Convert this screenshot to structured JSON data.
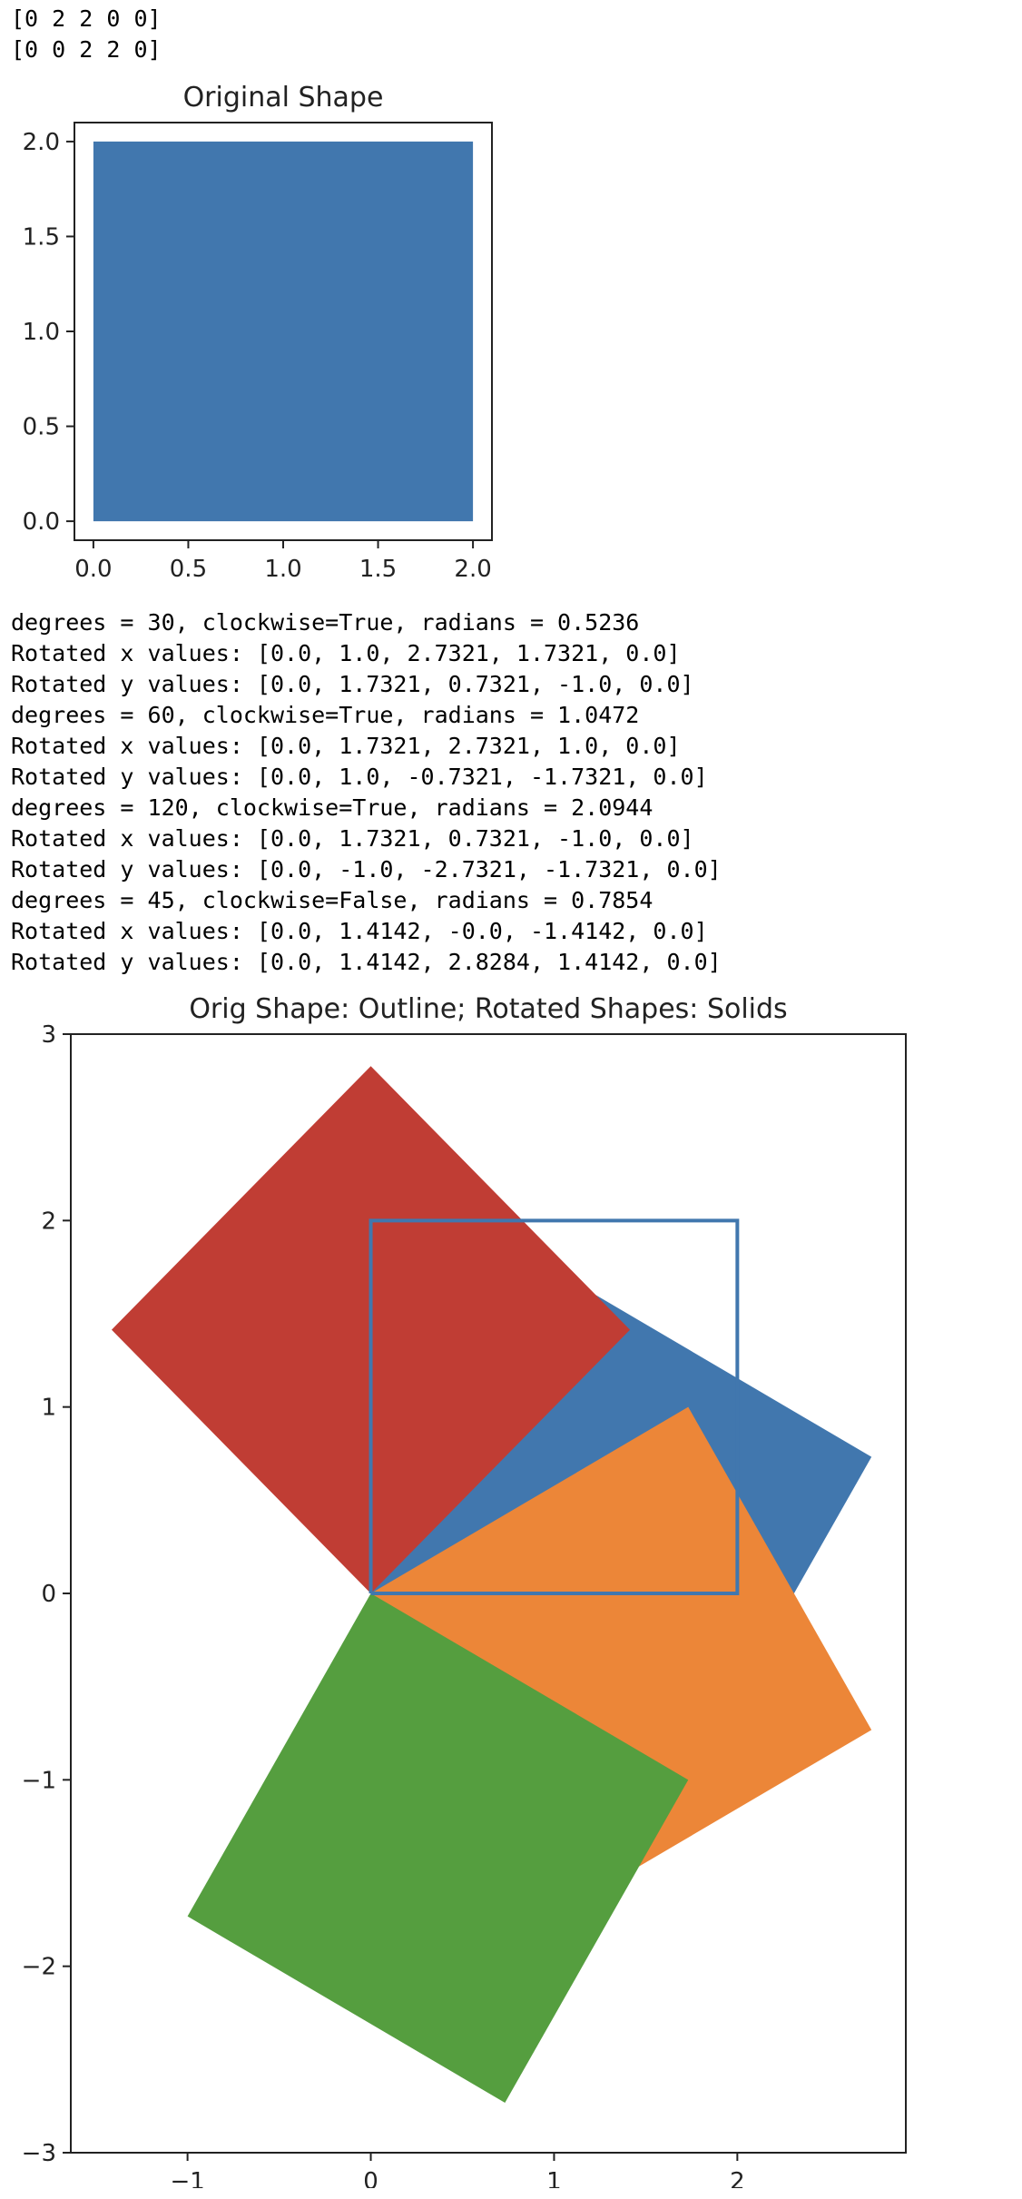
{
  "top_output": [
    "[0 2 2 0 0]",
    "[0 0 2 2 0]"
  ],
  "mid_output": [
    "degrees = 30, clockwise=True, radians = 0.5236",
    "Rotated x values: [0.0, 1.0, 2.7321, 1.7321, 0.0]",
    "Rotated y values: [0.0, 1.7321, 0.7321, -1.0, 0.0]",
    "degrees = 60, clockwise=True, radians = 1.0472",
    "Rotated x values: [0.0, 1.7321, 2.7321, 1.0, 0.0]",
    "Rotated y values: [0.0, 1.0, -0.7321, -1.7321, 0.0]",
    "degrees = 120, clockwise=True, radians = 2.0944",
    "Rotated x values: [0.0, 1.7321, 0.7321, -1.0, 0.0]",
    "Rotated y values: [0.0, -1.0, -2.7321, -1.7321, 0.0]",
    "degrees = 45, clockwise=False, radians = 0.7854",
    "Rotated x values: [0.0, 1.4142, -0.0, -1.4142, 0.0]",
    "Rotated y values: [0.0, 1.4142, 2.8284, 1.4142, 0.0]"
  ],
  "chart_data": [
    {
      "type": "area",
      "title": "Original Shape",
      "xlim": [
        -0.1,
        2.1
      ],
      "ylim": [
        -0.1,
        2.1
      ],
      "xticks": [
        "0.0",
        "0.5",
        "1.0",
        "1.5",
        "2.0"
      ],
      "yticks": [
        "0.0",
        "0.5",
        "1.0",
        "1.5",
        "2.0"
      ],
      "grid": false,
      "series": [
        {
          "x": [
            0,
            2,
            2,
            0,
            0
          ],
          "y": [
            0,
            0,
            2,
            2,
            0
          ],
          "fill": true,
          "color": "#4177ae"
        }
      ]
    },
    {
      "type": "area",
      "title": "Orig Shape: Outline; Rotated Shapes: Solids",
      "xlim": [
        -1.637,
        2.9194
      ],
      "ylim": [
        -3.0,
        3.0
      ],
      "xticks": [
        "−1",
        "0",
        "1",
        "2"
      ],
      "yticks": [
        "−3",
        "−2",
        "−1",
        "0",
        "1",
        "2",
        "3"
      ],
      "grid": false,
      "series": [
        {
          "x": [
            0.0,
            1.0,
            2.7321,
            1.7321,
            0.0
          ],
          "y": [
            0.0,
            1.7321,
            0.7321,
            -1.0,
            0.0
          ],
          "fill": true,
          "color": "#4177ae"
        },
        {
          "x": [
            0.0,
            1.7321,
            2.7321,
            1.0,
            0.0
          ],
          "y": [
            0.0,
            1.0,
            -0.7321,
            -1.7321,
            0.0
          ],
          "fill": true,
          "color": "#ec8638"
        },
        {
          "x": [
            0.0,
            1.7321,
            0.7321,
            -1.0,
            0.0
          ],
          "y": [
            0.0,
            -1.0,
            -2.7321,
            -1.7321,
            0.0
          ],
          "fill": true,
          "color": "#559e3f"
        },
        {
          "x": [
            0.0,
            1.4142,
            -0.0,
            -1.4142,
            0.0
          ],
          "y": [
            0.0,
            1.4142,
            2.8284,
            1.4142,
            0.0
          ],
          "fill": true,
          "color": "#c03d34"
        },
        {
          "x": [
            0,
            2,
            2,
            0,
            0
          ],
          "y": [
            0,
            0,
            2,
            2,
            0
          ],
          "fill": false,
          "color": "#4177ae"
        }
      ]
    }
  ]
}
